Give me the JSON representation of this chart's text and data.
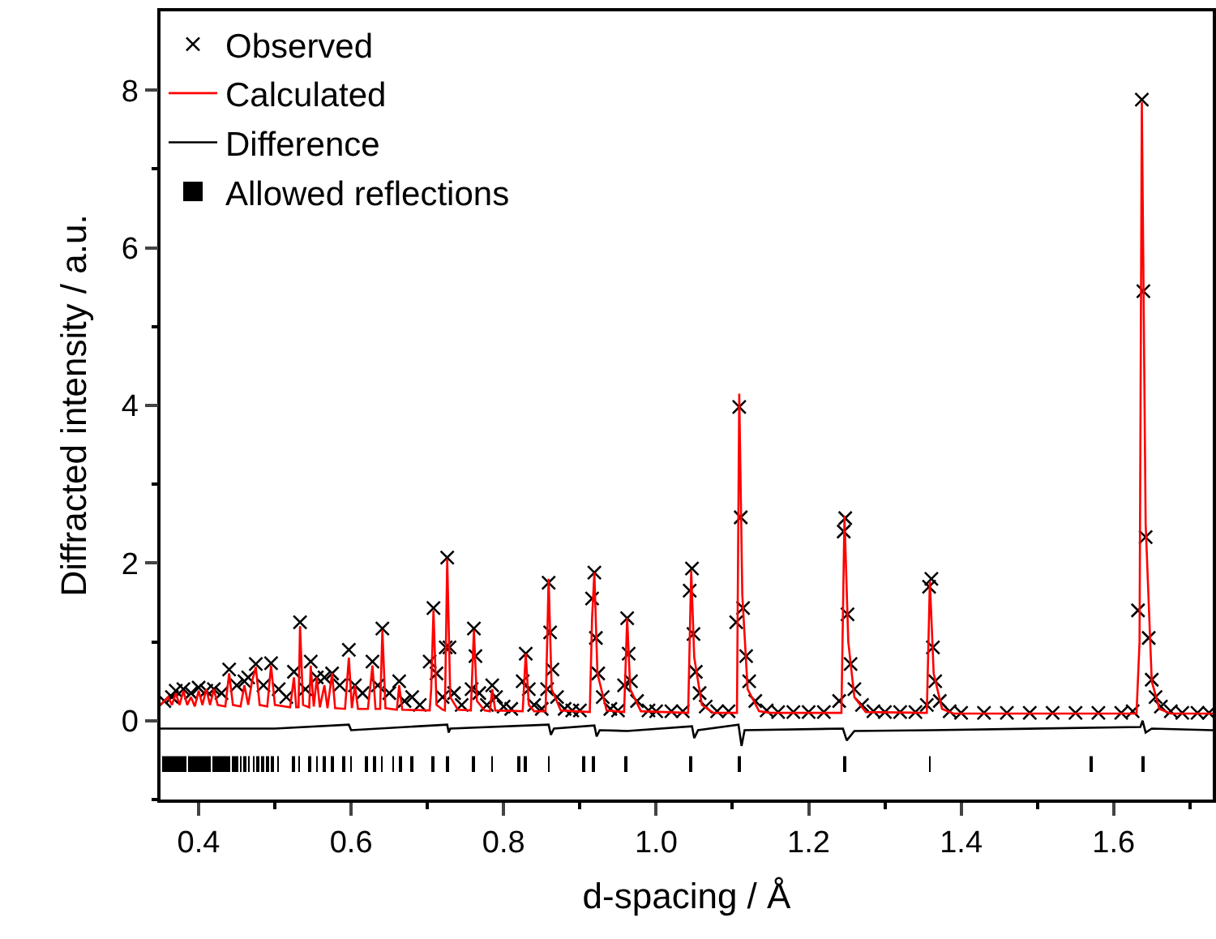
{
  "chart_data": {
    "type": "scatter",
    "xlabel": "d-spacing / Å",
    "ylabel": "Diffracted intensity / a.u.",
    "xlim": [
      0.35,
      1.73
    ],
    "ylim": [
      -1,
      9
    ],
    "xticks": [
      0.4,
      {
        "value": 0.5,
        "label": null
      },
      0.6,
      {
        "value": 0.7,
        "label": null
      },
      0.8,
      {
        "value": 0.9,
        "label": null
      },
      "1.0",
      {
        "value": 1.1,
        "label": null
      },
      1.2,
      {
        "value": 1.3,
        "label": null
      },
      1.4,
      {
        "value": 1.5,
        "label": null
      },
      1.6,
      {
        "value": 1.7,
        "label": null
      }
    ],
    "yticks": [
      {
        "value": -1,
        "label": null
      },
      0,
      {
        "value": 1,
        "label": null
      },
      2,
      {
        "value": 3,
        "label": null
      },
      4,
      {
        "value": 5,
        "label": null
      },
      6,
      {
        "value": 7,
        "label": null
      },
      8
    ],
    "legend": "top left",
    "series": [
      {
        "name": "Observed",
        "marker": "cross",
        "color": "#000000",
        "x": [
          0.355,
          0.365,
          0.37,
          0.38,
          0.39,
          0.4,
          0.41,
          0.42,
          0.43,
          0.44,
          0.45,
          0.46,
          0.465,
          0.475,
          0.485,
          0.495,
          0.505,
          0.515,
          0.525,
          0.533,
          0.54,
          0.547,
          0.555,
          0.565,
          0.575,
          0.585,
          0.597,
          0.605,
          0.615,
          0.628,
          0.635,
          0.641,
          0.65,
          0.663,
          0.67,
          0.68,
          0.69,
          0.703,
          0.708,
          0.712,
          0.72,
          0.724,
          0.726,
          0.729,
          0.735,
          0.745,
          0.758,
          0.761,
          0.763,
          0.768,
          0.778,
          0.785,
          0.79,
          0.8,
          0.81,
          0.825,
          0.829,
          0.833,
          0.84,
          0.85,
          0.857,
          0.859,
          0.861,
          0.864,
          0.87,
          0.88,
          0.89,
          0.9,
          0.916,
          0.919,
          0.921,
          0.924,
          0.93,
          0.94,
          0.95,
          0.958,
          0.962,
          0.964,
          0.967,
          0.975,
          0.99,
          1.0,
          1.02,
          1.035,
          1.044,
          1.047,
          1.049,
          1.052,
          1.057,
          1.065,
          1.08,
          1.095,
          1.105,
          1.109,
          1.111,
          1.114,
          1.118,
          1.122,
          1.13,
          1.145,
          1.16,
          1.18,
          1.2,
          1.22,
          1.24,
          1.246,
          1.248,
          1.251,
          1.255,
          1.26,
          1.27,
          1.285,
          1.3,
          1.32,
          1.34,
          1.355,
          1.358,
          1.361,
          1.363,
          1.366,
          1.372,
          1.385,
          1.4,
          1.43,
          1.46,
          1.49,
          1.52,
          1.55,
          1.58,
          1.61,
          1.625,
          1.632,
          1.637,
          1.639,
          1.642,
          1.646,
          1.65,
          1.655,
          1.662,
          1.675,
          1.69,
          1.71,
          1.725
        ],
        "values": [
          0.25,
          0.3,
          0.38,
          0.4,
          0.35,
          0.42,
          0.38,
          0.4,
          0.35,
          0.65,
          0.45,
          0.5,
          0.55,
          0.72,
          0.45,
          0.73,
          0.4,
          0.3,
          0.62,
          1.25,
          0.4,
          0.75,
          0.55,
          0.55,
          0.6,
          0.45,
          0.9,
          0.45,
          0.35,
          0.75,
          0.45,
          1.17,
          0.35,
          0.5,
          0.25,
          0.3,
          0.2,
          0.75,
          1.43,
          0.6,
          0.3,
          0.93,
          2.07,
          0.93,
          0.35,
          0.2,
          0.4,
          1.17,
          0.82,
          0.35,
          0.2,
          0.45,
          0.3,
          0.18,
          0.15,
          0.5,
          0.85,
          0.4,
          0.2,
          0.15,
          0.4,
          1.75,
          1.12,
          0.65,
          0.3,
          0.15,
          0.13,
          0.13,
          1.55,
          1.88,
          1.05,
          0.6,
          0.3,
          0.15,
          0.13,
          0.45,
          1.3,
          0.85,
          0.5,
          0.25,
          0.13,
          0.12,
          0.12,
          0.12,
          1.65,
          1.93,
          1.1,
          0.62,
          0.35,
          0.18,
          0.12,
          0.12,
          1.25,
          3.98,
          2.58,
          1.43,
          0.82,
          0.5,
          0.25,
          0.13,
          0.11,
          0.11,
          0.11,
          0.11,
          0.25,
          2.4,
          2.57,
          1.35,
          0.72,
          0.4,
          0.2,
          0.12,
          0.11,
          0.11,
          0.11,
          0.2,
          1.7,
          1.8,
          0.93,
          0.5,
          0.25,
          0.12,
          0.1,
          0.1,
          0.1,
          0.1,
          0.1,
          0.1,
          0.1,
          0.1,
          0.12,
          1.4,
          7.88,
          5.45,
          2.33,
          1.05,
          0.52,
          0.3,
          0.18,
          0.12,
          0.1,
          0.1,
          0.1
        ]
      },
      {
        "name": "Calculated",
        "type": "line",
        "marker": "none",
        "color": "#ff0000",
        "x": [
          0.35,
          0.36,
          0.365,
          0.37,
          0.375,
          0.38,
          0.385,
          0.39,
          0.395,
          0.4,
          0.405,
          0.41,
          0.415,
          0.42,
          0.425,
          0.435,
          0.44,
          0.445,
          0.455,
          0.46,
          0.465,
          0.47,
          0.475,
          0.48,
          0.49,
          0.495,
          0.5,
          0.52,
          0.525,
          0.528,
          0.531,
          0.533,
          0.537,
          0.545,
          0.547,
          0.551,
          0.555,
          0.559,
          0.565,
          0.569,
          0.575,
          0.579,
          0.592,
          0.597,
          0.601,
          0.605,
          0.609,
          0.622,
          0.628,
          0.632,
          0.638,
          0.641,
          0.645,
          0.66,
          0.663,
          0.667,
          0.703,
          0.705,
          0.708,
          0.712,
          0.72,
          0.723,
          0.726,
          0.73,
          0.74,
          0.757,
          0.761,
          0.765,
          0.775,
          0.782,
          0.785,
          0.789,
          0.825,
          0.829,
          0.833,
          0.84,
          0.855,
          0.859,
          0.863,
          0.875,
          0.913,
          0.916,
          0.919,
          0.923,
          0.935,
          0.958,
          0.962,
          0.966,
          0.98,
          1.042,
          1.046,
          1.05,
          1.06,
          1.075,
          1.106,
          1.109,
          1.113,
          1.12,
          1.135,
          1.15,
          1.243,
          1.247,
          1.252,
          1.26,
          1.275,
          1.355,
          1.359,
          1.364,
          1.375,
          1.39,
          1.63,
          1.634,
          1.637,
          1.642,
          1.65,
          1.66,
          1.675,
          1.73
        ],
        "values": [
          0.2,
          0.3,
          0.2,
          0.35,
          0.2,
          0.38,
          0.2,
          0.3,
          0.18,
          0.38,
          0.2,
          0.4,
          0.2,
          0.4,
          0.2,
          0.18,
          0.6,
          0.2,
          0.18,
          0.45,
          0.2,
          0.5,
          0.68,
          0.2,
          0.18,
          0.7,
          0.2,
          0.17,
          0.55,
          0.17,
          0.17,
          1.2,
          0.2,
          0.17,
          0.7,
          0.18,
          0.55,
          0.17,
          0.45,
          0.16,
          0.6,
          0.16,
          0.15,
          0.8,
          0.16,
          0.45,
          0.15,
          0.15,
          0.7,
          0.15,
          0.15,
          1.15,
          0.16,
          0.14,
          0.45,
          0.14,
          0.13,
          0.4,
          1.4,
          0.2,
          0.14,
          0.13,
          2.05,
          0.3,
          0.14,
          0.13,
          1.15,
          0.25,
          0.13,
          0.12,
          0.4,
          0.13,
          0.12,
          0.85,
          0.2,
          0.12,
          0.12,
          1.8,
          0.4,
          0.13,
          0.11,
          1.3,
          1.88,
          0.6,
          0.13,
          0.11,
          1.3,
          0.4,
          0.12,
          0.1,
          1.9,
          0.8,
          0.2,
          0.1,
          0.1,
          4.15,
          1.6,
          0.4,
          0.12,
          0.1,
          0.1,
          2.6,
          1.0,
          0.3,
          0.11,
          0.1,
          1.77,
          0.6,
          0.15,
          0.09,
          0.09,
          1.0,
          7.85,
          2.5,
          0.5,
          0.15,
          0.09,
          0.09
        ]
      },
      {
        "name": "Difference",
        "type": "line",
        "marker": "none",
        "color": "#000000",
        "x": [
          0.35,
          0.5,
          0.597,
          0.6,
          0.726,
          0.728,
          0.73,
          0.859,
          0.862,
          0.866,
          0.919,
          0.922,
          0.926,
          0.962,
          1.047,
          1.05,
          1.055,
          1.108,
          1.112,
          1.116,
          1.245,
          1.25,
          1.26,
          1.36,
          1.635,
          1.638,
          1.642,
          1.65,
          1.73
        ],
        "values": [
          -0.1,
          -0.1,
          -0.05,
          -0.12,
          -0.05,
          -0.15,
          -0.1,
          -0.05,
          -0.18,
          -0.1,
          -0.06,
          -0.2,
          -0.12,
          -0.13,
          -0.07,
          -0.22,
          -0.12,
          -0.05,
          -0.32,
          -0.12,
          -0.1,
          -0.25,
          -0.13,
          -0.12,
          -0.08,
          0.0,
          -0.15,
          -0.1,
          -0.12
        ]
      },
      {
        "name": "Allowed reflections",
        "type": "bar",
        "color": "#000000",
        "base": [
          -0.65,
          -0.65,
          -0.65,
          -0.65,
          -0.65,
          -0.65,
          -0.65,
          -0.65,
          -0.65,
          -0.65,
          -0.65,
          -0.65,
          -0.65,
          -0.65,
          -0.65,
          -0.65,
          -0.65,
          -0.65,
          -0.65,
          -0.65,
          -0.65,
          -0.65,
          -0.65,
          -0.65,
          -0.65,
          -0.65,
          -0.65,
          -0.65,
          -0.65,
          -0.65,
          -0.65,
          -0.65,
          -0.65,
          -0.65,
          -0.65,
          -0.65,
          -0.65,
          -0.65,
          -0.65,
          -0.65,
          -0.65,
          -0.65,
          -0.65,
          -0.65,
          -0.65,
          -0.65,
          -0.65,
          -0.65,
          -0.65,
          -0.65,
          -0.65,
          -0.65,
          -0.65,
          -0.65,
          -0.65,
          -0.65,
          -0.65,
          -0.65,
          -0.65,
          -0.65,
          -0.65,
          -0.65,
          -0.65
        ],
        "x": [
          0.355,
          0.359,
          0.363,
          0.367,
          0.371,
          0.375,
          0.379,
          0.383,
          0.387,
          0.391,
          0.395,
          0.399,
          0.403,
          0.407,
          0.411,
          0.415,
          0.419,
          0.423,
          0.427,
          0.431,
          0.435,
          0.44,
          0.445,
          0.45,
          0.455,
          0.46,
          0.466,
          0.472,
          0.478,
          0.484,
          0.49,
          0.497,
          0.504,
          0.525,
          0.532,
          0.545,
          0.555,
          0.565,
          0.575,
          0.59,
          0.6,
          0.62,
          0.63,
          0.64,
          0.655,
          0.665,
          0.68,
          0.708,
          0.726,
          0.76,
          0.785,
          0.82,
          0.828,
          0.859,
          0.905,
          0.918,
          0.961,
          1.046,
          1.109,
          1.247,
          1.359,
          1.57,
          1.638
        ],
        "values": [
          0.2,
          0.2,
          0.2,
          0.2,
          0.2,
          0.2,
          0.2,
          0.2,
          0.2,
          0.2,
          0.2,
          0.2,
          0.2,
          0.2,
          0.2,
          0.2,
          0.2,
          0.2,
          0.2,
          0.2,
          0.2,
          0.2,
          0.2,
          0.2,
          0.2,
          0.2,
          0.2,
          0.2,
          0.2,
          0.2,
          0.2,
          0.2,
          0.2,
          0.2,
          0.2,
          0.2,
          0.2,
          0.2,
          0.2,
          0.2,
          0.2,
          0.2,
          0.2,
          0.2,
          0.2,
          0.2,
          0.2,
          0.2,
          0.2,
          0.2,
          0.2,
          0.2,
          0.2,
          0.2,
          0.2,
          0.2,
          0.2,
          0.2,
          0.2,
          0.2,
          0.2,
          0.2,
          0.2
        ]
      }
    ]
  }
}
